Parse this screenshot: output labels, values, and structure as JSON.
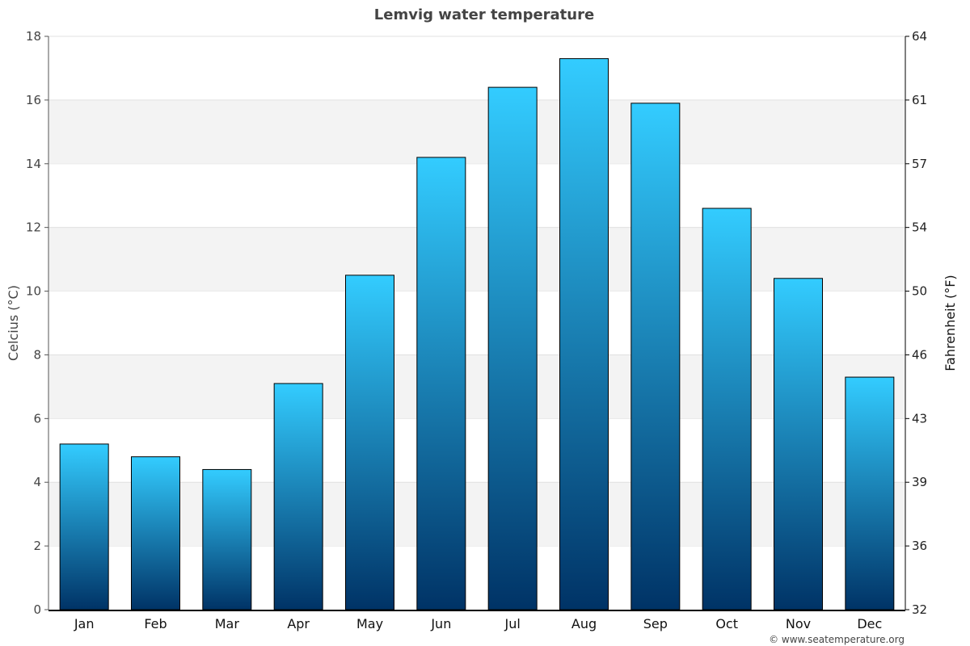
{
  "chart_data": {
    "type": "bar",
    "title": "Lemvig water temperature",
    "categories": [
      "Jan",
      "Feb",
      "Mar",
      "Apr",
      "May",
      "Jun",
      "Jul",
      "Aug",
      "Sep",
      "Oct",
      "Nov",
      "Dec"
    ],
    "values": [
      5.2,
      4.8,
      4.4,
      7.1,
      10.5,
      14.2,
      16.4,
      17.3,
      15.9,
      12.6,
      10.4,
      7.3
    ],
    "ylabel": "Celcius (°C)",
    "ylabel_right": "Fahrenheit (°F)",
    "ylim": [
      0,
      18
    ],
    "yticks": [
      0,
      2,
      4,
      6,
      8,
      10,
      12,
      14,
      16,
      18
    ],
    "yticks_right": [
      32,
      36,
      39,
      43,
      46,
      50,
      54,
      57,
      61,
      64
    ],
    "grid": true,
    "bar_gradient": [
      "#33ccff",
      "#003366"
    ],
    "band_color": "#f3f3f3"
  },
  "credit": "© www.seatemperature.org"
}
